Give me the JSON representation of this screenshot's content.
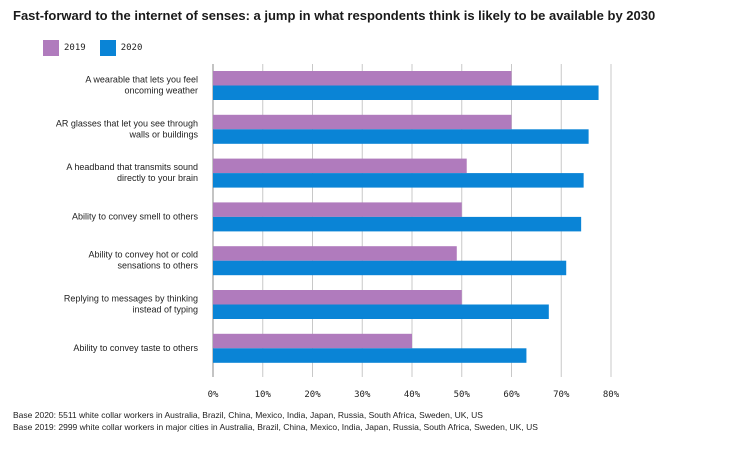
{
  "title": "Fast-forward to the internet of senses: a jump in what respondents think is likely to be available by 2030",
  "colors": {
    "y2019": "#b07bbd",
    "y2020": "#0a84d6",
    "grid": "#c8c8c8"
  },
  "chart_data": {
    "type": "bar",
    "orientation": "horizontal",
    "title": "Fast-forward to the internet of senses: a jump in what respondents think is likely to be available by 2030",
    "xlabel": "",
    "ylabel": "",
    "xlim": [
      0,
      80
    ],
    "x_ticks": [
      "0%",
      "10%",
      "20%",
      "30%",
      "40%",
      "50%",
      "60%",
      "70%",
      "80%"
    ],
    "grid": true,
    "legend_position": "top-left",
    "categories": [
      [
        "A wearable that lets you feel",
        "oncoming weather"
      ],
      [
        "AR glasses that let you see through",
        "walls or buildings"
      ],
      [
        "A headband that transmits sound",
        "directly to your brain"
      ],
      [
        "Ability to convey smell to others"
      ],
      [
        "Ability to convey hot or cold",
        "sensations to others"
      ],
      [
        "Replying to messages by thinking",
        "instead of typing"
      ],
      [
        "Ability to convey taste to others"
      ]
    ],
    "series": [
      {
        "name": "2019",
        "values": [
          60,
          60,
          51,
          50,
          49,
          50,
          40
        ]
      },
      {
        "name": "2020",
        "values": [
          77.5,
          75.5,
          74.5,
          74,
          71,
          67.5,
          63
        ]
      }
    ]
  },
  "footnotes": [
    "Base 2020: 5511 white collar workers in Australia, Brazil, China, Mexico, India, Japan, Russia, South Africa, Sweden, UK, US",
    "Base 2019: 2999 white collar workers in major cities in Australia, Brazil, China, Mexico, India, Japan, Russia, South Africa, Sweden, UK, US"
  ]
}
